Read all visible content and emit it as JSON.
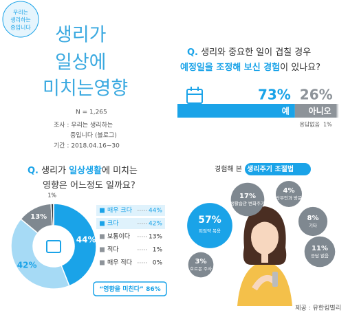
{
  "header": {
    "badge": [
      "우리는",
      "생리하는",
      "중입니다"
    ],
    "title_lines": [
      "생리가",
      "일상에",
      "미치는영향"
    ]
  },
  "survey": {
    "n": "N = 1,265",
    "lines": [
      "조사 : 우리는 생리하는",
      "중입니다 (블로그)",
      "기간 : 2018.04.16~30"
    ]
  },
  "chart_data": [
    {
      "type": "bar",
      "title": {
        "q": "Q.",
        "line1": "생리와 중요한 일이 겹칠 경우",
        "highlight": "예정일을 조정해 보신 경험",
        "rest": "이 있나요?"
      },
      "categories": [
        "예",
        "아니오",
        "응답없음"
      ],
      "values": [
        73,
        26,
        1
      ],
      "value_labels": [
        "73%",
        "26%",
        "1%"
      ],
      "colors": [
        "#1aa3e8",
        "#8d9399",
        "#d0d3d6"
      ],
      "xlim": [
        0,
        100
      ]
    },
    {
      "type": "pie",
      "title": {
        "q": "Q.",
        "pre": "생리가 ",
        "highlight": "일상생활",
        "post": "에 미치는",
        "line2": "영향은 어느정도 일까요?"
      },
      "categories": [
        "매우 크다",
        "크다",
        "보통이다",
        "적다",
        "매우 적다"
      ],
      "values": [
        44,
        42,
        13,
        1,
        0
      ],
      "value_labels": [
        "44%",
        "42%",
        "13%",
        "1%",
        "0%"
      ],
      "colors": [
        "#1aa3e8",
        "#a6daf5",
        "#7f8890",
        "#333a40",
        "#cfd3d6"
      ],
      "annotation": "“영향을 미친다” 86%"
    },
    {
      "type": "bubble",
      "title": {
        "pre": "경험해 본 ",
        "highlight": "생리주기 조절법"
      },
      "categories": [
        "피임약 복용",
        "생활습관 변화주기",
        "산부인과 방문",
        "기타",
        "응답 없음",
        "호르몬 주사"
      ],
      "values": [
        57,
        17,
        4,
        8,
        11,
        3
      ],
      "value_labels": [
        "57%",
        "17%",
        "4%",
        "8%",
        "11%",
        "3%"
      ],
      "colors": [
        "#1aa3e8",
        "#7f8890",
        "#7f8890",
        "#7f8890",
        "#7f8890",
        "#7f8890"
      ]
    }
  ],
  "credit": "제공 : 유한킴벌리"
}
